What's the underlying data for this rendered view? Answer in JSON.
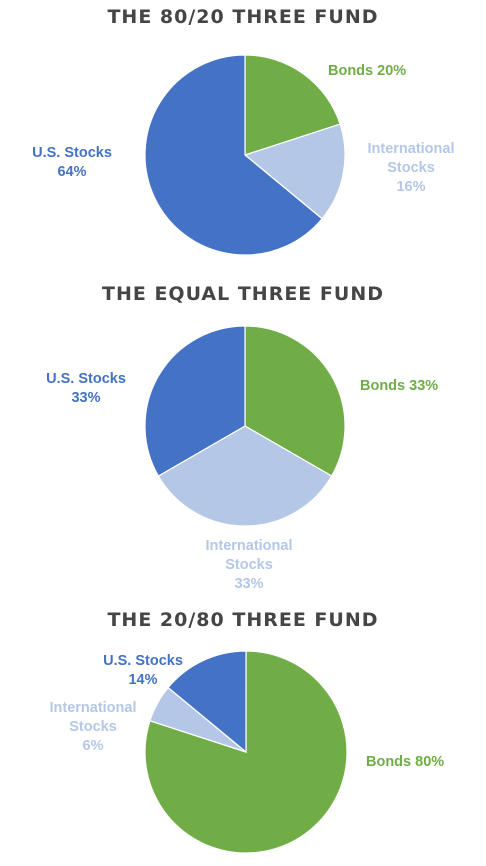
{
  "colors": {
    "us_stocks": "#4472C4",
    "international_stocks": "#B4C7E7",
    "bonds": "#70AD47",
    "title": "#454545"
  },
  "chart_data": [
    {
      "type": "pie",
      "title": "THE 80/20 THREE FUND",
      "slices": [
        {
          "key": "bonds",
          "label_lines": [
            "Bonds 20%"
          ],
          "value": 20,
          "color": "#70AD47"
        },
        {
          "key": "international_stocks",
          "label_lines": [
            "International",
            "Stocks",
            "16%"
          ],
          "value": 16,
          "color": "#B4C7E7"
        },
        {
          "key": "us_stocks",
          "label_lines": [
            "U.S. Stocks",
            "64%"
          ],
          "value": 64,
          "color": "#4472C4"
        }
      ]
    },
    {
      "type": "pie",
      "title": "THE EQUAL THREE FUND",
      "slices": [
        {
          "key": "bonds",
          "label_lines": [
            "Bonds 33%"
          ],
          "value": 33,
          "color": "#70AD47"
        },
        {
          "key": "international_stocks",
          "label_lines": [
            "International",
            "Stocks",
            "33%"
          ],
          "value": 33,
          "color": "#B4C7E7"
        },
        {
          "key": "us_stocks",
          "label_lines": [
            "U.S. Stocks",
            "33%"
          ],
          "value": 33,
          "color": "#4472C4"
        }
      ]
    },
    {
      "type": "pie",
      "title": "THE 20/80 THREE FUND",
      "slices": [
        {
          "key": "bonds",
          "label_lines": [
            "Bonds 80%"
          ],
          "value": 80,
          "color": "#70AD47"
        },
        {
          "key": "international_stocks",
          "label_lines": [
            "International",
            "Stocks",
            "6%"
          ],
          "value": 6,
          "color": "#B4C7E7"
        },
        {
          "key": "us_stocks",
          "label_lines": [
            "U.S. Stocks",
            "14%"
          ],
          "value": 14,
          "color": "#4472C4"
        }
      ]
    }
  ]
}
